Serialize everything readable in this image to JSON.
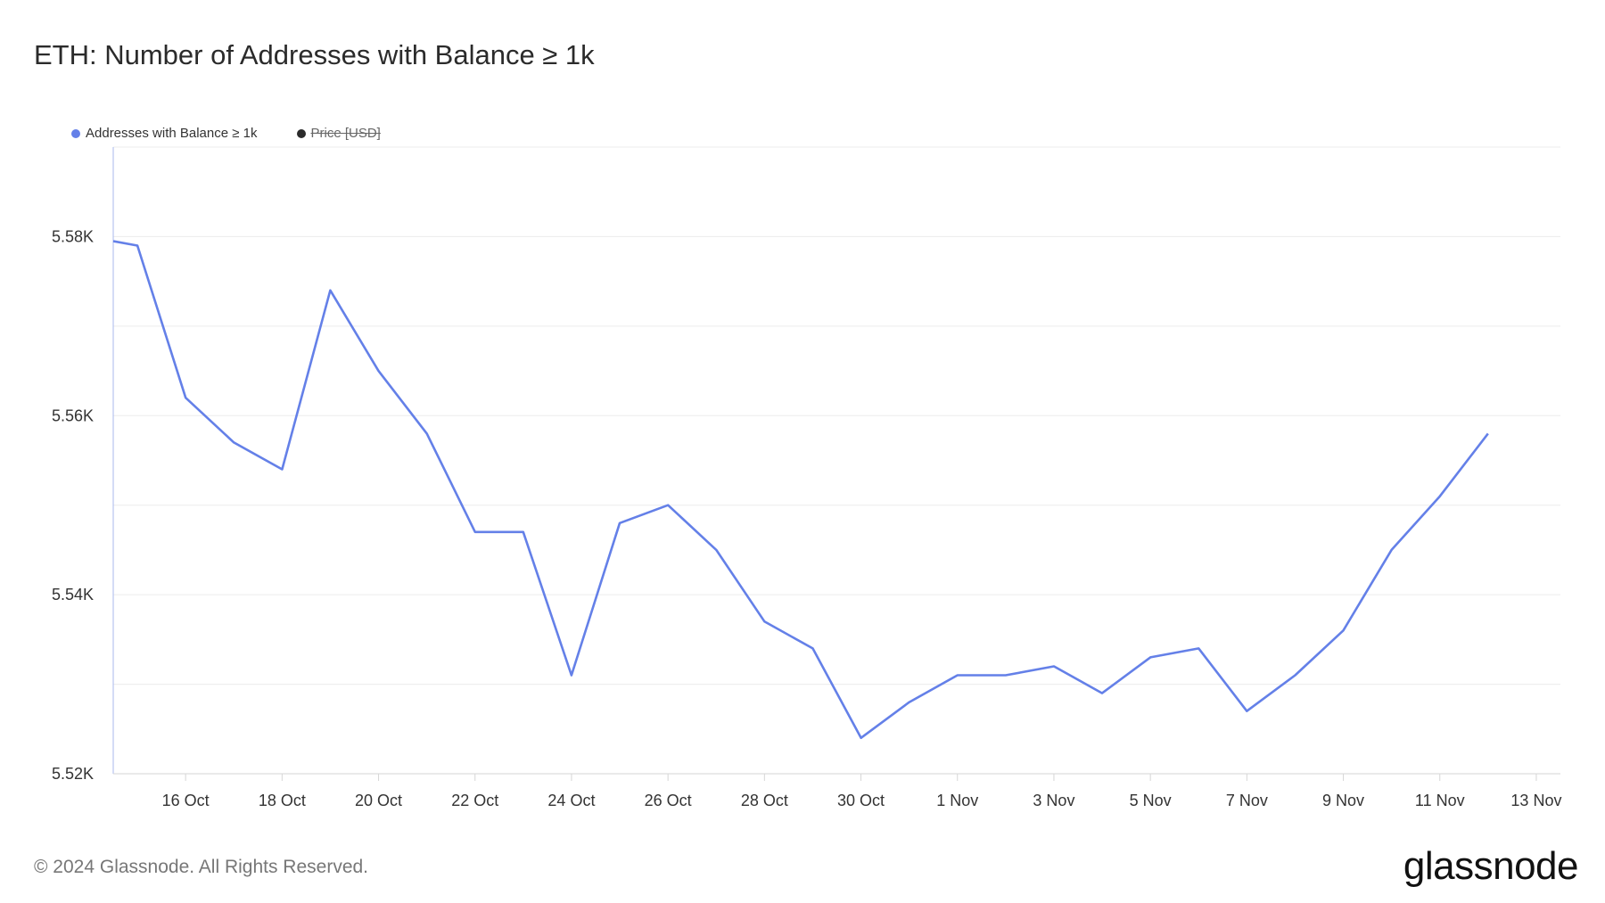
{
  "header": {
    "title": "ETH: Number of Addresses with Balance ≥ 1k"
  },
  "legend": [
    {
      "label": "Addresses with Balance ≥ 1k",
      "color": "#6480e8",
      "visible": true
    },
    {
      "label": "Price [USD]",
      "color": "#2b2b2b",
      "visible": false
    }
  ],
  "footer": {
    "copyright": "© 2024 Glassnode. All Rights Reserved.",
    "logo": "glassnode"
  },
  "chart_data": {
    "type": "line",
    "x_label_dates": [
      "16 Oct",
      "18 Oct",
      "20 Oct",
      "22 Oct",
      "24 Oct",
      "26 Oct",
      "28 Oct",
      "30 Oct",
      "1 Nov",
      "3 Nov",
      "5 Nov",
      "7 Nov",
      "9 Nov",
      "11 Nov",
      "13 Nov"
    ],
    "y_ticks": [
      "5.52K",
      "5.54K",
      "5.56K",
      "5.58K"
    ],
    "ylim": [
      5520,
      5590
    ],
    "grid": true,
    "legend_position": "top-left",
    "series": [
      {
        "name": "Addresses with Balance ≥ 1k",
        "color": "#6480e8",
        "points": [
          {
            "x": "2024-10-14T12:00",
            "y": 5579.5
          },
          {
            "x": "2024-10-15",
            "y": 5579
          },
          {
            "x": "2024-10-16",
            "y": 5562
          },
          {
            "x": "2024-10-17",
            "y": 5557
          },
          {
            "x": "2024-10-18",
            "y": 5554
          },
          {
            "x": "2024-10-19",
            "y": 5574
          },
          {
            "x": "2024-10-20",
            "y": 5565
          },
          {
            "x": "2024-10-21",
            "y": 5558
          },
          {
            "x": "2024-10-22",
            "y": 5547
          },
          {
            "x": "2024-10-23",
            "y": 5547
          },
          {
            "x": "2024-10-24",
            "y": 5531
          },
          {
            "x": "2024-10-25",
            "y": 5548
          },
          {
            "x": "2024-10-26",
            "y": 5550
          },
          {
            "x": "2024-10-27",
            "y": 5545
          },
          {
            "x": "2024-10-28",
            "y": 5537
          },
          {
            "x": "2024-10-29",
            "y": 5534
          },
          {
            "x": "2024-10-30",
            "y": 5524
          },
          {
            "x": "2024-10-31",
            "y": 5528
          },
          {
            "x": "2024-11-01",
            "y": 5531
          },
          {
            "x": "2024-11-02",
            "y": 5531
          },
          {
            "x": "2024-11-03",
            "y": 5532
          },
          {
            "x": "2024-11-04",
            "y": 5529
          },
          {
            "x": "2024-11-05",
            "y": 5533
          },
          {
            "x": "2024-11-06",
            "y": 5534
          },
          {
            "x": "2024-11-07",
            "y": 5527
          },
          {
            "x": "2024-11-08",
            "y": 5531
          },
          {
            "x": "2024-11-09",
            "y": 5536
          },
          {
            "x": "2024-11-10",
            "y": 5545
          },
          {
            "x": "2024-11-11",
            "y": 5551
          },
          {
            "x": "2024-11-12",
            "y": 5558
          }
        ]
      }
    ]
  }
}
